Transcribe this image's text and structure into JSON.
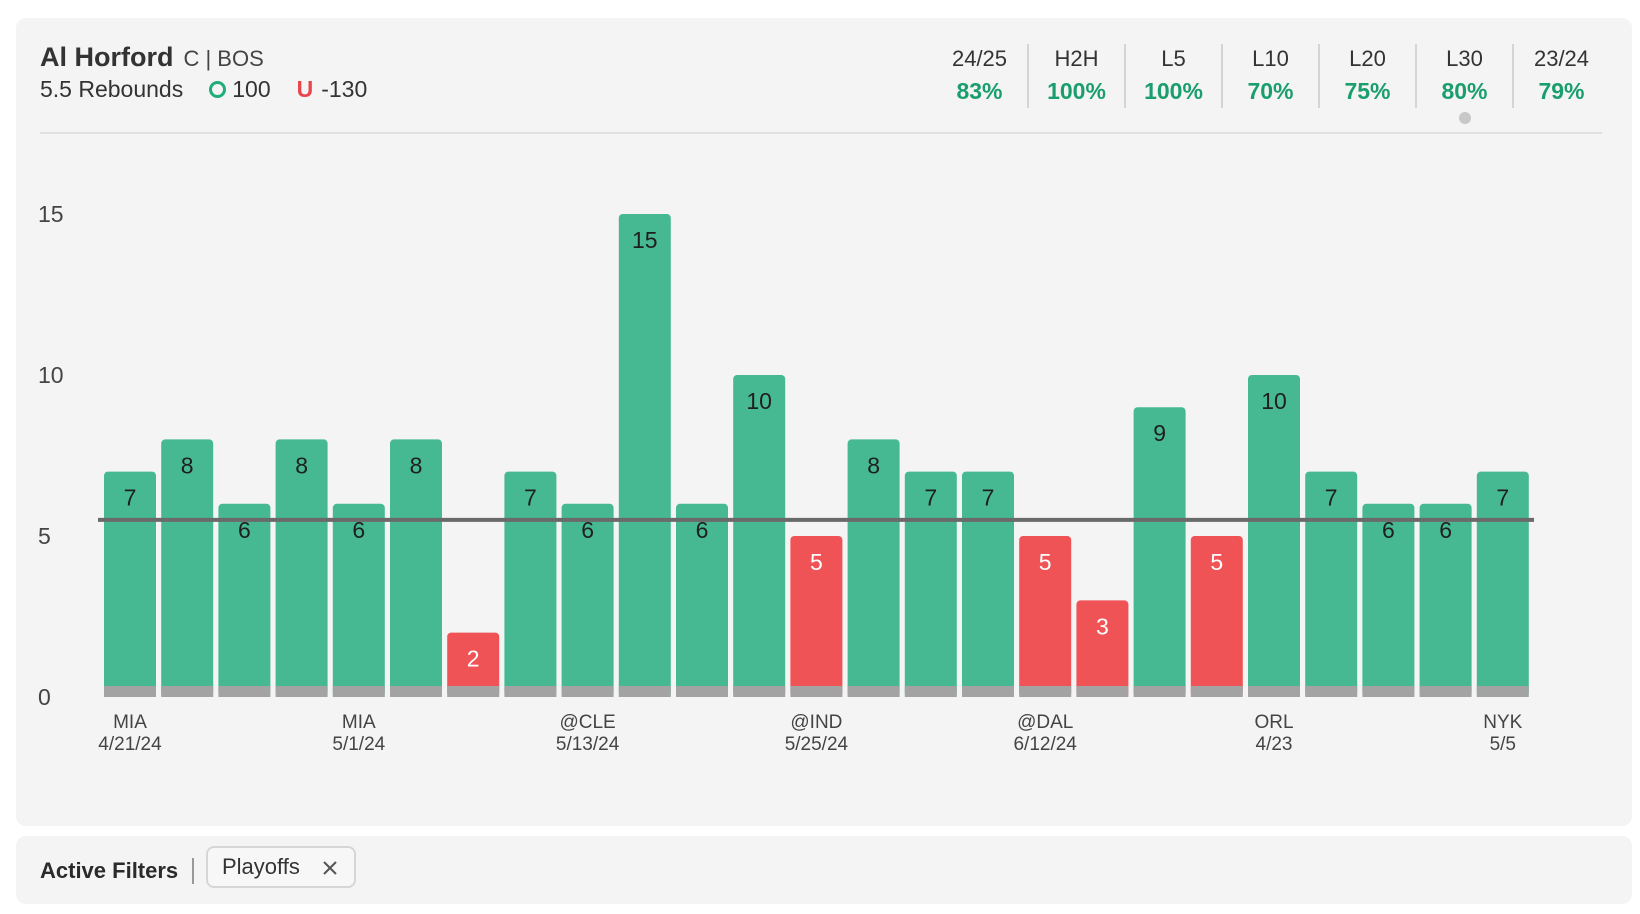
{
  "header": {
    "player_name": "Al Horford",
    "player_meta": "C | BOS",
    "prop": "5.5 Rebounds",
    "over_value": "100",
    "under_label": "U",
    "under_value": "-130"
  },
  "stats": [
    {
      "label": "24/25",
      "value": "83%"
    },
    {
      "label": "H2H",
      "value": "100%"
    },
    {
      "label": "L5",
      "value": "100%"
    },
    {
      "label": "L10",
      "value": "70%"
    },
    {
      "label": "L20",
      "value": "75%"
    },
    {
      "label": "L30",
      "value": "80%"
    },
    {
      "label": "23/24",
      "value": "79%"
    }
  ],
  "colors": {
    "over": "#46b993",
    "under": "#f05356",
    "base": "#a3a3a3",
    "line": "#6a6a6a",
    "accent_text": "#1a9e6d"
  },
  "chart_data": {
    "type": "bar",
    "title": "",
    "xlabel": "",
    "ylabel": "",
    "ylim": [
      0,
      15
    ],
    "yticks": [
      0,
      5,
      10,
      15
    ],
    "threshold": 5.5,
    "values": [
      7,
      8,
      6,
      8,
      6,
      8,
      2,
      7,
      6,
      15,
      6,
      10,
      5,
      8,
      7,
      7,
      5,
      3,
      9,
      5,
      10,
      7,
      6,
      6,
      7
    ],
    "x_labels": [
      {
        "index": 0,
        "opponent": "MIA",
        "date": "4/21/24"
      },
      {
        "index": 4,
        "opponent": "MIA",
        "date": "5/1/24"
      },
      {
        "index": 8,
        "opponent": "@CLE",
        "date": "5/13/24"
      },
      {
        "index": 12,
        "opponent": "@IND",
        "date": "5/25/24"
      },
      {
        "index": 16,
        "opponent": "@DAL",
        "date": "6/12/24"
      },
      {
        "index": 20,
        "opponent": "ORL",
        "date": "4/23"
      },
      {
        "index": 24,
        "opponent": "NYK",
        "date": "5/5"
      }
    ]
  },
  "filters": {
    "title": "Active Filters",
    "chips": [
      {
        "label": "Playoffs"
      }
    ]
  }
}
